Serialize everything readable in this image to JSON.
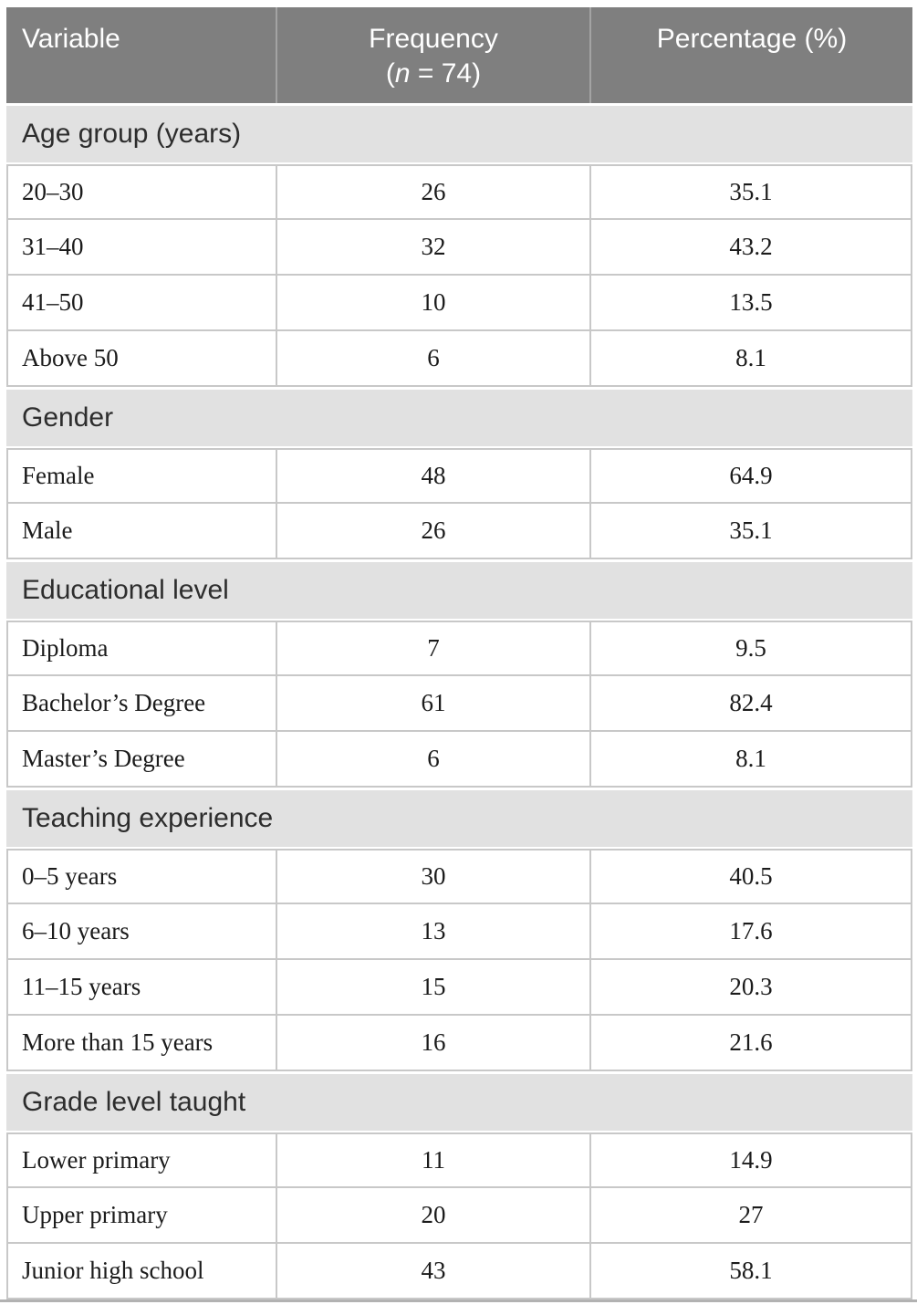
{
  "colors": {
    "header_bg": "#7f7f7f",
    "header_text": "#ffffff",
    "header_divider": "#a3a3a3",
    "section_bg": "#e1e1e1",
    "section_text": "#2d2d2d",
    "row_bg": "#ffffff",
    "row_text": "#1b1b1b",
    "border": "#c8c8c8",
    "bottom_rule": "#b2b2b2",
    "page_bg": "#ffffff"
  },
  "table": {
    "columns": [
      {
        "label": "Variable",
        "align": "left"
      },
      {
        "label": "Frequency",
        "sub": {
          "open": "(",
          "var": "n",
          "rest": " = 74)"
        },
        "align": "center"
      },
      {
        "label": "Percentage (%)",
        "align": "center"
      }
    ],
    "sections": [
      {
        "title": "Age group (years)",
        "rows": [
          [
            "20–30",
            "26",
            "35.1"
          ],
          [
            "31–40",
            "32",
            "43.2"
          ],
          [
            "41–50",
            "10",
            "13.5"
          ],
          [
            "Above 50",
            "6",
            "8.1"
          ]
        ]
      },
      {
        "title": "Gender",
        "rows": [
          [
            "Female",
            "48",
            "64.9"
          ],
          [
            "Male",
            "26",
            "35.1"
          ]
        ]
      },
      {
        "title": "Educational level",
        "rows": [
          [
            "Diploma",
            "7",
            "9.5"
          ],
          [
            "Bachelor’s Degree",
            "61",
            "82.4"
          ],
          [
            "Master’s Degree",
            "6",
            "8.1"
          ]
        ]
      },
      {
        "title": "Teaching experience",
        "rows": [
          [
            "0–5 years",
            "30",
            "40.5"
          ],
          [
            "6–10 years",
            "13",
            "17.6"
          ],
          [
            "11–15 years",
            "15",
            "20.3"
          ],
          [
            "More than 15 years",
            "16",
            "21.6"
          ]
        ]
      },
      {
        "title": "Grade level taught",
        "rows": [
          [
            "Lower primary",
            "11",
            "14.9"
          ],
          [
            "Upper primary",
            "20",
            "27"
          ],
          [
            "Junior high school",
            "43",
            "58.1"
          ]
        ]
      }
    ]
  }
}
